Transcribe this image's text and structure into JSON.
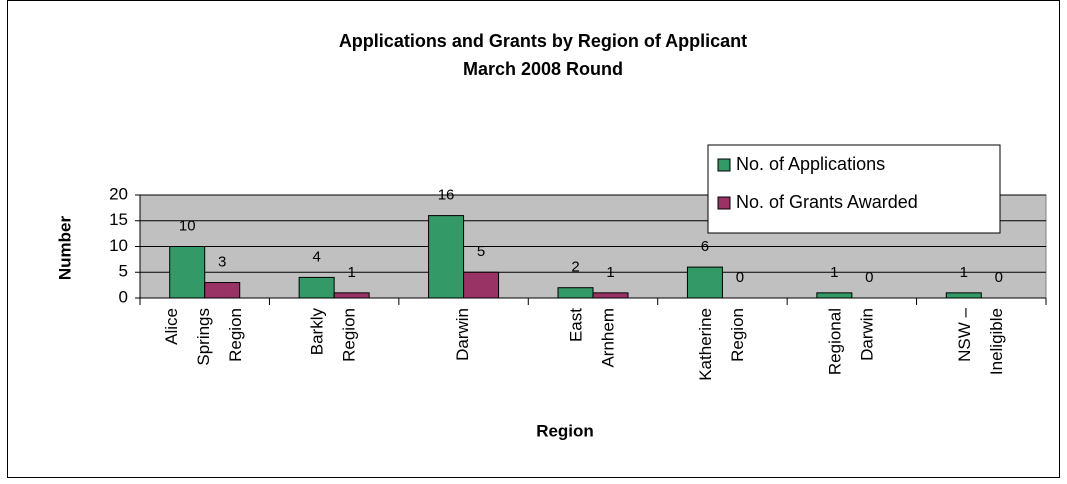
{
  "chart_data": {
    "type": "bar",
    "title": "Applications and Grants by Region of Applicant",
    "subtitle": "March 2008 Round",
    "x_label": "Region",
    "y_label": "Number",
    "categories": [
      [
        "Alice",
        "Springs",
        "Region"
      ],
      [
        "Barkly",
        "Region"
      ],
      [
        "Darwin"
      ],
      [
        "East",
        "Arnhem"
      ],
      [
        "Katherine",
        "Region"
      ],
      [
        "Regional",
        "Darwin"
      ],
      [
        "NSW –",
        "Ineligible"
      ]
    ],
    "series": [
      {
        "name": "No. of Applications",
        "color": "#339966",
        "values": [
          10,
          4,
          16,
          2,
          6,
          1,
          1
        ]
      },
      {
        "name": "No. of Grants Awarded",
        "color": "#993366",
        "values": [
          3,
          1,
          5,
          1,
          0,
          0,
          0
        ]
      }
    ],
    "ylim": [
      0,
      20
    ],
    "yticks": [
      0,
      5,
      10,
      15,
      20
    ],
    "grid": true,
    "legend": "top-right"
  }
}
